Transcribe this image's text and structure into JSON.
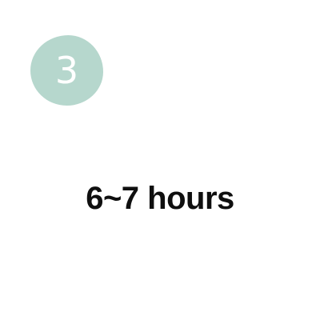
{
  "step": {
    "number": "3",
    "badge_color": "#b6d7cd"
  },
  "duration": {
    "text": "6~7 hours",
    "color": "#0f0f0f"
  }
}
